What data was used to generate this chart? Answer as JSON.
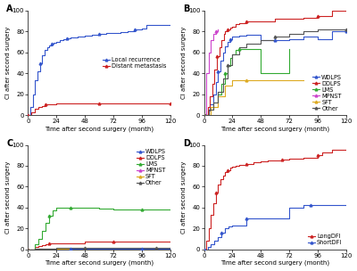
{
  "panel_A": {
    "label": "A",
    "curves": [
      {
        "name": "Local recurrence",
        "color": "#3355cc",
        "marker": "^",
        "x": [
          0,
          2,
          4,
          6,
          8,
          10,
          12,
          14,
          16,
          18,
          20,
          22,
          24,
          27,
          30,
          33,
          36,
          42,
          48,
          54,
          60,
          66,
          72,
          78,
          84,
          90,
          96,
          100,
          108,
          120
        ],
        "y": [
          0,
          8,
          20,
          33,
          42,
          50,
          57,
          62,
          65,
          67,
          68,
          69,
          70,
          72,
          73,
          73.5,
          74,
          75,
          76,
          77,
          78,
          78.5,
          79,
          79.5,
          80,
          82,
          83,
          86,
          86,
          86
        ]
      },
      {
        "name": "Distant metastasis",
        "color": "#cc2222",
        "marker": "^",
        "x": [
          0,
          3,
          6,
          9,
          12,
          15,
          18,
          24,
          36,
          48,
          60,
          72,
          84,
          96,
          108,
          120
        ],
        "y": [
          0,
          3,
          6,
          8,
          9,
          10,
          10,
          11,
          11,
          11,
          11,
          11,
          11,
          11,
          11,
          11
        ]
      }
    ],
    "xlabel": "Time after second surgery (month)",
    "ylabel": "CI after second surgery",
    "xlim": [
      0,
      120
    ],
    "ylim": [
      0,
      100
    ],
    "xticks": [
      0,
      24,
      48,
      72,
      96,
      120
    ],
    "yticks": [
      0,
      20,
      40,
      60,
      80,
      100
    ],
    "legend_loc": "center right",
    "legend_bbox": null
  },
  "panel_B": {
    "label": "B",
    "curves": [
      {
        "name": "WDLPS",
        "color": "#3355cc",
        "marker": "^",
        "x": [
          0,
          3,
          5,
          8,
          10,
          12,
          14,
          16,
          18,
          20,
          22,
          24,
          30,
          36,
          48,
          60,
          72,
          84,
          96,
          108,
          120
        ],
        "y": [
          0,
          4,
          10,
          20,
          32,
          42,
          52,
          60,
          66,
          70,
          73,
          75,
          76,
          77,
          72,
          72,
          73,
          75,
          73,
          80,
          80
        ]
      },
      {
        "name": "DDLPS",
        "color": "#cc2222",
        "marker": "^",
        "x": [
          0,
          3,
          5,
          7,
          9,
          11,
          13,
          15,
          17,
          18,
          20,
          22,
          24,
          27,
          30,
          36,
          48,
          60,
          72,
          84,
          96,
          108,
          120
        ],
        "y": [
          0,
          8,
          18,
          30,
          44,
          56,
          65,
          72,
          78,
          80,
          82,
          84,
          85,
          87,
          88,
          90,
          90,
          92,
          92,
          93,
          95,
          100,
          100
        ]
      },
      {
        "name": "LMS",
        "color": "#33aa33",
        "marker": "^",
        "x": [
          0,
          4,
          8,
          12,
          15,
          18,
          20,
          22,
          24,
          27,
          30,
          36,
          48,
          60,
          72
        ],
        "y": [
          0,
          5,
          12,
          20,
          30,
          40,
          47,
          55,
          58,
          62,
          63,
          63,
          40,
          40,
          63
        ]
      },
      {
        "name": "MPNST",
        "color": "#cc44cc",
        "marker": "^",
        "x": [
          0,
          2,
          4,
          6,
          8,
          10,
          12
        ],
        "y": [
          0,
          40,
          60,
          72,
          78,
          80,
          82
        ]
      },
      {
        "name": "SFT",
        "color": "#ddaa22",
        "marker": "^",
        "x": [
          0,
          6,
          12,
          18,
          24,
          36,
          48,
          60,
          72,
          84
        ],
        "y": [
          0,
          8,
          18,
          28,
          33,
          33,
          33,
          33,
          33,
          33
        ]
      },
      {
        "name": "Other",
        "color": "#555555",
        "marker": "^",
        "x": [
          0,
          4,
          8,
          12,
          16,
          20,
          24,
          30,
          36,
          48,
          60,
          72,
          84,
          96,
          108,
          120
        ],
        "y": [
          0,
          5,
          12,
          22,
          35,
          48,
          58,
          65,
          68,
          72,
          75,
          78,
          80,
          82,
          82,
          82
        ]
      }
    ],
    "xlabel": "Time after second surgery (month)",
    "ylabel": "CI after second surgery",
    "xlim": [
      0,
      120
    ],
    "ylim": [
      0,
      100
    ],
    "xticks": [
      0,
      24,
      48,
      72,
      96,
      120
    ],
    "yticks": [
      0,
      20,
      40,
      60,
      80,
      100
    ],
    "legend_loc": "lower right",
    "legend_bbox": null
  },
  "panel_C": {
    "label": "C",
    "curves": [
      {
        "name": "WDLPS",
        "color": "#3355cc",
        "marker": "^",
        "x": [
          0,
          6,
          12,
          18,
          24,
          36,
          48,
          60,
          72,
          84,
          96,
          108,
          120
        ],
        "y": [
          0,
          0.3,
          0.3,
          0.5,
          0.5,
          0.5,
          0.5,
          0.5,
          0.5,
          0.5,
          0.5,
          0.5,
          0.5
        ]
      },
      {
        "name": "DDLPS",
        "color": "#cc2222",
        "marker": "^",
        "x": [
          0,
          6,
          9,
          12,
          15,
          18,
          24,
          36,
          48,
          60,
          72,
          84,
          96,
          108,
          120
        ],
        "y": [
          0,
          2,
          3,
          4,
          5,
          5.5,
          6,
          6,
          7,
          7,
          7,
          7,
          7,
          7,
          7
        ]
      },
      {
        "name": "LMS",
        "color": "#33aa33",
        "marker": "^",
        "x": [
          0,
          6,
          9,
          12,
          15,
          18,
          21,
          24,
          27,
          30,
          36,
          48,
          60,
          72,
          84,
          96,
          108,
          120
        ],
        "y": [
          0,
          5,
          10,
          18,
          25,
          32,
          37,
          40,
          40,
          40,
          40,
          40,
          39,
          38,
          38,
          38,
          38,
          38
        ]
      },
      {
        "name": "MPNST",
        "color": "#cc44cc",
        "marker": "^",
        "x": [
          0,
          6,
          12
        ],
        "y": [
          0,
          0.3,
          0.3
        ]
      },
      {
        "name": "SFT",
        "color": "#ddaa22",
        "marker": "^",
        "x": [
          0,
          6,
          12,
          24,
          36
        ],
        "y": [
          0,
          0.2,
          0.2,
          0.2,
          0.2
        ]
      },
      {
        "name": "Other",
        "color": "#555555",
        "marker": "^",
        "x": [
          0,
          6,
          12,
          24,
          36,
          48,
          60,
          72,
          84,
          96,
          108,
          120
        ],
        "y": [
          0,
          0.5,
          1,
          1.5,
          1.5,
          1.5,
          1.5,
          1.5,
          1.5,
          1.5,
          1.5,
          1.5
        ]
      }
    ],
    "xlabel": "Time after second surgery (month)",
    "ylabel": "CI after second surgery",
    "xlim": [
      0,
      120
    ],
    "ylim": [
      0,
      100
    ],
    "xticks": [
      0,
      24,
      48,
      72,
      96,
      120
    ],
    "yticks": [
      0,
      20,
      40,
      60,
      80,
      100
    ],
    "legend_loc": "upper right",
    "legend_bbox": null
  },
  "panel_D": {
    "label": "D",
    "curves": [
      {
        "name": "LongDFI",
        "color": "#cc2222",
        "marker": "^",
        "x": [
          0,
          2,
          4,
          6,
          8,
          10,
          12,
          14,
          16,
          18,
          20,
          22,
          24,
          27,
          30,
          36,
          42,
          48,
          54,
          60,
          66,
          72,
          78,
          84,
          90,
          96,
          100,
          108,
          120
        ],
        "y": [
          0,
          8,
          20,
          33,
          44,
          54,
          62,
          67,
          71,
          74,
          76,
          78,
          79,
          80,
          81,
          82,
          83,
          84,
          85,
          85.5,
          86,
          86.5,
          87,
          87.5,
          88,
          90,
          93,
          95,
          95
        ]
      },
      {
        "name": "ShortDFI",
        "color": "#3355cc",
        "marker": "^",
        "x": [
          0,
          3,
          6,
          9,
          12,
          15,
          18,
          21,
          24,
          30,
          36,
          48,
          60,
          72,
          84,
          90,
          96,
          108,
          120
        ],
        "y": [
          0,
          2,
          5,
          8,
          12,
          16,
          20,
          22,
          23,
          23,
          30,
          30,
          30,
          40,
          42,
          42,
          42,
          42,
          42
        ]
      }
    ],
    "xlabel": "Time after second surgery (month)",
    "ylabel": "CI after second surgery",
    "xlim": [
      0,
      120
    ],
    "ylim": [
      0,
      100
    ],
    "xticks": [
      0,
      24,
      48,
      72,
      96,
      120
    ],
    "yticks": [
      0,
      20,
      40,
      60,
      80,
      100
    ],
    "legend_loc": "lower right",
    "legend_bbox": null
  },
  "figure_bg": "#ffffff",
  "axes_bg": "#ffffff",
  "font_size": 5.0,
  "label_font_size": 7,
  "marker_size": 2.0,
  "marker_every": 5,
  "line_width": 0.8
}
